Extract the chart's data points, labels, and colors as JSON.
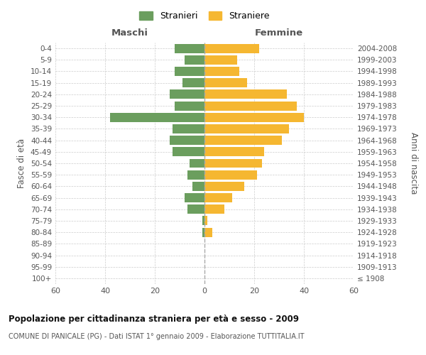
{
  "age_groups": [
    "100+",
    "95-99",
    "90-94",
    "85-89",
    "80-84",
    "75-79",
    "70-74",
    "65-69",
    "60-64",
    "55-59",
    "50-54",
    "45-49",
    "40-44",
    "35-39",
    "30-34",
    "25-29",
    "20-24",
    "15-19",
    "10-14",
    "5-9",
    "0-4"
  ],
  "birth_years": [
    "≤ 1908",
    "1909-1913",
    "1914-1918",
    "1919-1923",
    "1924-1928",
    "1929-1933",
    "1934-1938",
    "1939-1943",
    "1944-1948",
    "1949-1953",
    "1954-1958",
    "1959-1963",
    "1964-1968",
    "1969-1973",
    "1974-1978",
    "1979-1983",
    "1984-1988",
    "1989-1993",
    "1994-1998",
    "1999-2003",
    "2004-2008"
  ],
  "males": [
    0,
    0,
    0,
    0,
    1,
    1,
    7,
    8,
    5,
    7,
    6,
    13,
    14,
    13,
    38,
    12,
    14,
    9,
    12,
    8,
    12
  ],
  "females": [
    0,
    0,
    0,
    0,
    3,
    1,
    8,
    11,
    16,
    21,
    23,
    24,
    31,
    34,
    40,
    37,
    33,
    17,
    14,
    13,
    22
  ],
  "male_color": "#6b9e5e",
  "female_color": "#f5b731",
  "grid_color": "#cccccc",
  "bar_height": 0.8,
  "xlim": 60,
  "title": "Popolazione per cittadinanza straniera per età e sesso - 2009",
  "subtitle": "COMUNE DI PANICALE (PG) - Dati ISTAT 1° gennaio 2009 - Elaborazione TUTTITALIA.IT",
  "ylabel_left": "Fasce di età",
  "ylabel_right": "Anni di nascita",
  "label_maschi": "Maschi",
  "label_femmine": "Femmine",
  "legend_stranieri": "Stranieri",
  "legend_straniere": "Straniere",
  "dashed_line_color": "#aaaaaa"
}
